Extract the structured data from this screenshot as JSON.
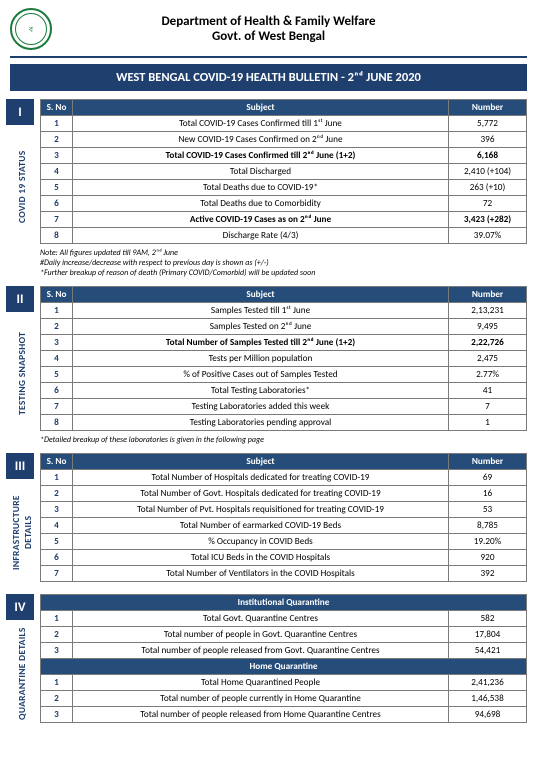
{
  "header": {
    "dept": "Department of Health & Family Welfare",
    "govt": "Govt. of West Bengal"
  },
  "title": "WEST BENGAL COVID-19 HEALTH BULLETIN -  2ⁿᵈ JUNE 2020",
  "sections": [
    {
      "roman": "I",
      "label": "COVID 19 STATUS",
      "headers": [
        "S. No",
        "Subject",
        "Number"
      ],
      "rows": [
        {
          "sno": "1",
          "subj": "Total COVID-19 Cases Confirmed till 1ˢᵗ June",
          "num": "5,772"
        },
        {
          "sno": "2",
          "subj": "New COVID-19 Cases Confirmed on 2ⁿᵈ June",
          "num": "396"
        },
        {
          "sno": "3",
          "subj": "Total COVID-19 Cases Confirmed till 2ⁿᵈ June (1+2)",
          "num": "6,168",
          "bold": true
        },
        {
          "sno": "4",
          "subj": "Total Discharged",
          "num": "2,410 (+104)"
        },
        {
          "sno": "5",
          "subj": "Total Deaths due to COVID-19*",
          "num": "263 (+10)"
        },
        {
          "sno": "6",
          "subj": "Total Deaths due to Comorbidity",
          "num": "72"
        },
        {
          "sno": "7",
          "subj": "Active COVID-19 Cases as on 2ⁿᵈ June",
          "num": "3,423 (+282)",
          "bold": true
        },
        {
          "sno": "8",
          "subj": "Discharge Rate (4/3)",
          "num": "39.07%"
        }
      ],
      "note": "Note: All figures updated till 9AM, 2ⁿᵈ June\n#Daily increase/decrease with respect to previous day is shown as (+/-)\n*Further breakup of reason of death (Primary COVID/Comorbid) will be updated soon"
    },
    {
      "roman": "II",
      "label": "TESTING SNAPSHOT",
      "headers": [
        "S. No",
        "Subject",
        "Number"
      ],
      "rows": [
        {
          "sno": "1",
          "subj": "Samples Tested till 1ˢᵗ June",
          "num": "2,13,231"
        },
        {
          "sno": "2",
          "subj": "Samples Tested on 2ⁿᵈ June",
          "num": "9,495"
        },
        {
          "sno": "3",
          "subj": "Total Number of Samples Tested till 2ⁿᵈ June (1+2)",
          "num": "2,22,726",
          "bold": true
        },
        {
          "sno": "4",
          "subj": "Tests per Million population",
          "num": "2,475"
        },
        {
          "sno": "5",
          "subj": "% of Positive Cases out of Samples Tested",
          "num": "2.77%"
        },
        {
          "sno": "6",
          "subj": "Total Testing Laboratories*",
          "num": "41"
        },
        {
          "sno": "7",
          "subj": "Testing Laboratories added this week",
          "num": "7"
        },
        {
          "sno": "8",
          "subj": "Testing Laboratories pending approval",
          "num": "1"
        }
      ],
      "note": "*Detailed breakup of these laboratories is given in the following page"
    },
    {
      "roman": "III",
      "label": "INFRASTRUCTURE DETAILS",
      "headers": [
        "S. No",
        "Subject",
        "Number"
      ],
      "rows": [
        {
          "sno": "1",
          "subj": "Total Number of Hospitals dedicated for treating COVID-19",
          "num": "69"
        },
        {
          "sno": "2",
          "subj": "Total Number of Govt. Hospitals dedicated for treating COVID-19",
          "num": "16"
        },
        {
          "sno": "3",
          "subj": "Total Number of Pvt. Hospitals requisitioned for treating COVID-19",
          "num": "53"
        },
        {
          "sno": "4",
          "subj": "Total Number of earmarked COVID-19 Beds",
          "num": "8,785"
        },
        {
          "sno": "5",
          "subj": "% Occupancy in COVID Beds",
          "num": "19.20%"
        },
        {
          "sno": "6",
          "subj": "Total ICU Beds in the COVID Hospitals",
          "num": "920"
        },
        {
          "sno": "7",
          "subj": "Total Number of Ventilators in the COVID Hospitals",
          "num": "392"
        }
      ]
    }
  ],
  "section4": {
    "roman": "IV",
    "label": "QUARANTINE DETAILS",
    "sub1_title": "Institutional Quarantine",
    "sub1_rows": [
      {
        "sno": "1",
        "subj": "Total Govt. Quarantine Centres",
        "num": "582"
      },
      {
        "sno": "2",
        "subj": "Total number of people in Govt. Quarantine Centres",
        "num": "17,804"
      },
      {
        "sno": "3",
        "subj": "Total number of people released from Govt. Quarantine Centres",
        "num": "54,421"
      }
    ],
    "sub2_title": "Home Quarantine",
    "sub2_rows": [
      {
        "sno": "1",
        "subj": "Total Home Quarantined People",
        "num": "2,41,236"
      },
      {
        "sno": "2",
        "subj": "Total number of people currently in Home Quarantine",
        "num": "1,46,538"
      },
      {
        "sno": "3",
        "subj": "Total number of people released from Home Quarantine Centres",
        "num": "94,698"
      }
    ]
  }
}
